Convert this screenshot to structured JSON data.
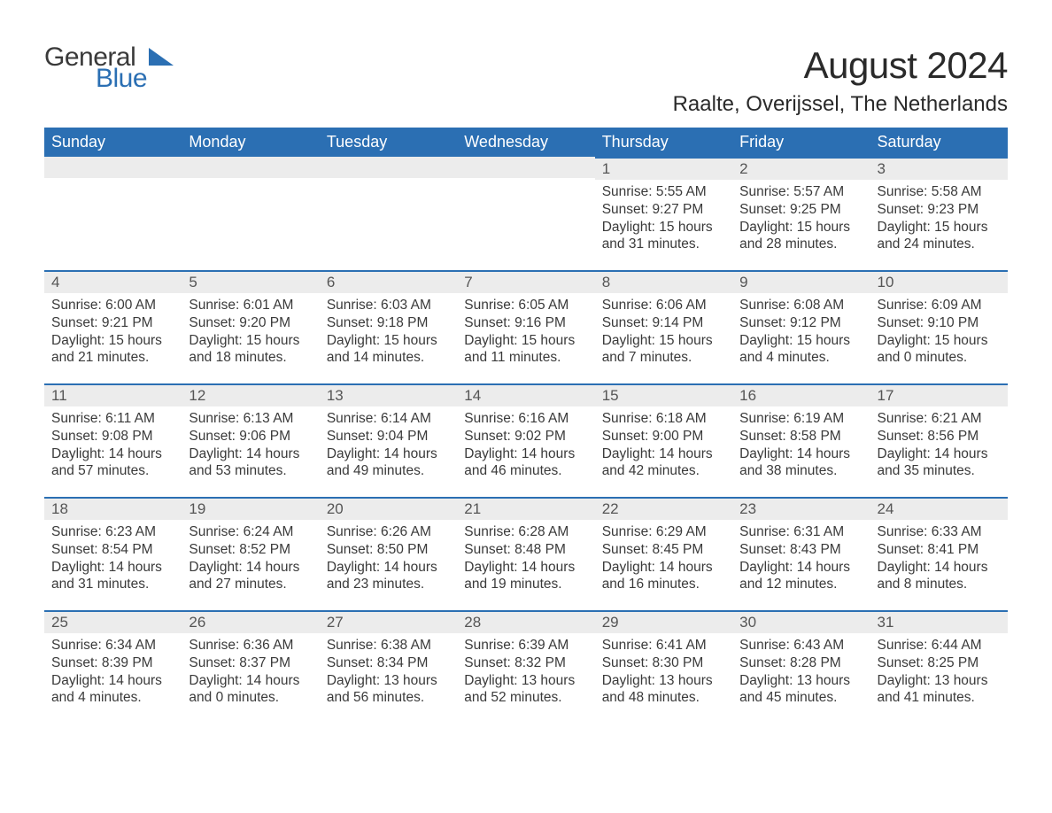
{
  "brand": {
    "word1": "General",
    "word2": "Blue"
  },
  "title": "August 2024",
  "location": "Raalte, Overijssel, The Netherlands",
  "colors": {
    "header_bg": "#2b6fb3",
    "header_text": "#ffffff",
    "daynum_bg": "#ececec",
    "daynum_border": "#2b6fb3",
    "body_text": "#3a3a3a",
    "page_bg": "#ffffff"
  },
  "weekdays": [
    "Sunday",
    "Monday",
    "Tuesday",
    "Wednesday",
    "Thursday",
    "Friday",
    "Saturday"
  ],
  "weeks": [
    [
      null,
      null,
      null,
      null,
      {
        "n": "1",
        "sunrise": "5:55 AM",
        "sunset": "9:27 PM",
        "dl": "15 hours and 31 minutes."
      },
      {
        "n": "2",
        "sunrise": "5:57 AM",
        "sunset": "9:25 PM",
        "dl": "15 hours and 28 minutes."
      },
      {
        "n": "3",
        "sunrise": "5:58 AM",
        "sunset": "9:23 PM",
        "dl": "15 hours and 24 minutes."
      }
    ],
    [
      {
        "n": "4",
        "sunrise": "6:00 AM",
        "sunset": "9:21 PM",
        "dl": "15 hours and 21 minutes."
      },
      {
        "n": "5",
        "sunrise": "6:01 AM",
        "sunset": "9:20 PM",
        "dl": "15 hours and 18 minutes."
      },
      {
        "n": "6",
        "sunrise": "6:03 AM",
        "sunset": "9:18 PM",
        "dl": "15 hours and 14 minutes."
      },
      {
        "n": "7",
        "sunrise": "6:05 AM",
        "sunset": "9:16 PM",
        "dl": "15 hours and 11 minutes."
      },
      {
        "n": "8",
        "sunrise": "6:06 AM",
        "sunset": "9:14 PM",
        "dl": "15 hours and 7 minutes."
      },
      {
        "n": "9",
        "sunrise": "6:08 AM",
        "sunset": "9:12 PM",
        "dl": "15 hours and 4 minutes."
      },
      {
        "n": "10",
        "sunrise": "6:09 AM",
        "sunset": "9:10 PM",
        "dl": "15 hours and 0 minutes."
      }
    ],
    [
      {
        "n": "11",
        "sunrise": "6:11 AM",
        "sunset": "9:08 PM",
        "dl": "14 hours and 57 minutes."
      },
      {
        "n": "12",
        "sunrise": "6:13 AM",
        "sunset": "9:06 PM",
        "dl": "14 hours and 53 minutes."
      },
      {
        "n": "13",
        "sunrise": "6:14 AM",
        "sunset": "9:04 PM",
        "dl": "14 hours and 49 minutes."
      },
      {
        "n": "14",
        "sunrise": "6:16 AM",
        "sunset": "9:02 PM",
        "dl": "14 hours and 46 minutes."
      },
      {
        "n": "15",
        "sunrise": "6:18 AM",
        "sunset": "9:00 PM",
        "dl": "14 hours and 42 minutes."
      },
      {
        "n": "16",
        "sunrise": "6:19 AM",
        "sunset": "8:58 PM",
        "dl": "14 hours and 38 minutes."
      },
      {
        "n": "17",
        "sunrise": "6:21 AM",
        "sunset": "8:56 PM",
        "dl": "14 hours and 35 minutes."
      }
    ],
    [
      {
        "n": "18",
        "sunrise": "6:23 AM",
        "sunset": "8:54 PM",
        "dl": "14 hours and 31 minutes."
      },
      {
        "n": "19",
        "sunrise": "6:24 AM",
        "sunset": "8:52 PM",
        "dl": "14 hours and 27 minutes."
      },
      {
        "n": "20",
        "sunrise": "6:26 AM",
        "sunset": "8:50 PM",
        "dl": "14 hours and 23 minutes."
      },
      {
        "n": "21",
        "sunrise": "6:28 AM",
        "sunset": "8:48 PM",
        "dl": "14 hours and 19 minutes."
      },
      {
        "n": "22",
        "sunrise": "6:29 AM",
        "sunset": "8:45 PM",
        "dl": "14 hours and 16 minutes."
      },
      {
        "n": "23",
        "sunrise": "6:31 AM",
        "sunset": "8:43 PM",
        "dl": "14 hours and 12 minutes."
      },
      {
        "n": "24",
        "sunrise": "6:33 AM",
        "sunset": "8:41 PM",
        "dl": "14 hours and 8 minutes."
      }
    ],
    [
      {
        "n": "25",
        "sunrise": "6:34 AM",
        "sunset": "8:39 PM",
        "dl": "14 hours and 4 minutes."
      },
      {
        "n": "26",
        "sunrise": "6:36 AM",
        "sunset": "8:37 PM",
        "dl": "14 hours and 0 minutes."
      },
      {
        "n": "27",
        "sunrise": "6:38 AM",
        "sunset": "8:34 PM",
        "dl": "13 hours and 56 minutes."
      },
      {
        "n": "28",
        "sunrise": "6:39 AM",
        "sunset": "8:32 PM",
        "dl": "13 hours and 52 minutes."
      },
      {
        "n": "29",
        "sunrise": "6:41 AM",
        "sunset": "8:30 PM",
        "dl": "13 hours and 48 minutes."
      },
      {
        "n": "30",
        "sunrise": "6:43 AM",
        "sunset": "8:28 PM",
        "dl": "13 hours and 45 minutes."
      },
      {
        "n": "31",
        "sunrise": "6:44 AM",
        "sunset": "8:25 PM",
        "dl": "13 hours and 41 minutes."
      }
    ]
  ],
  "labels": {
    "sunrise_prefix": "Sunrise: ",
    "sunset_prefix": "Sunset: ",
    "daylight_prefix": "Daylight: "
  }
}
